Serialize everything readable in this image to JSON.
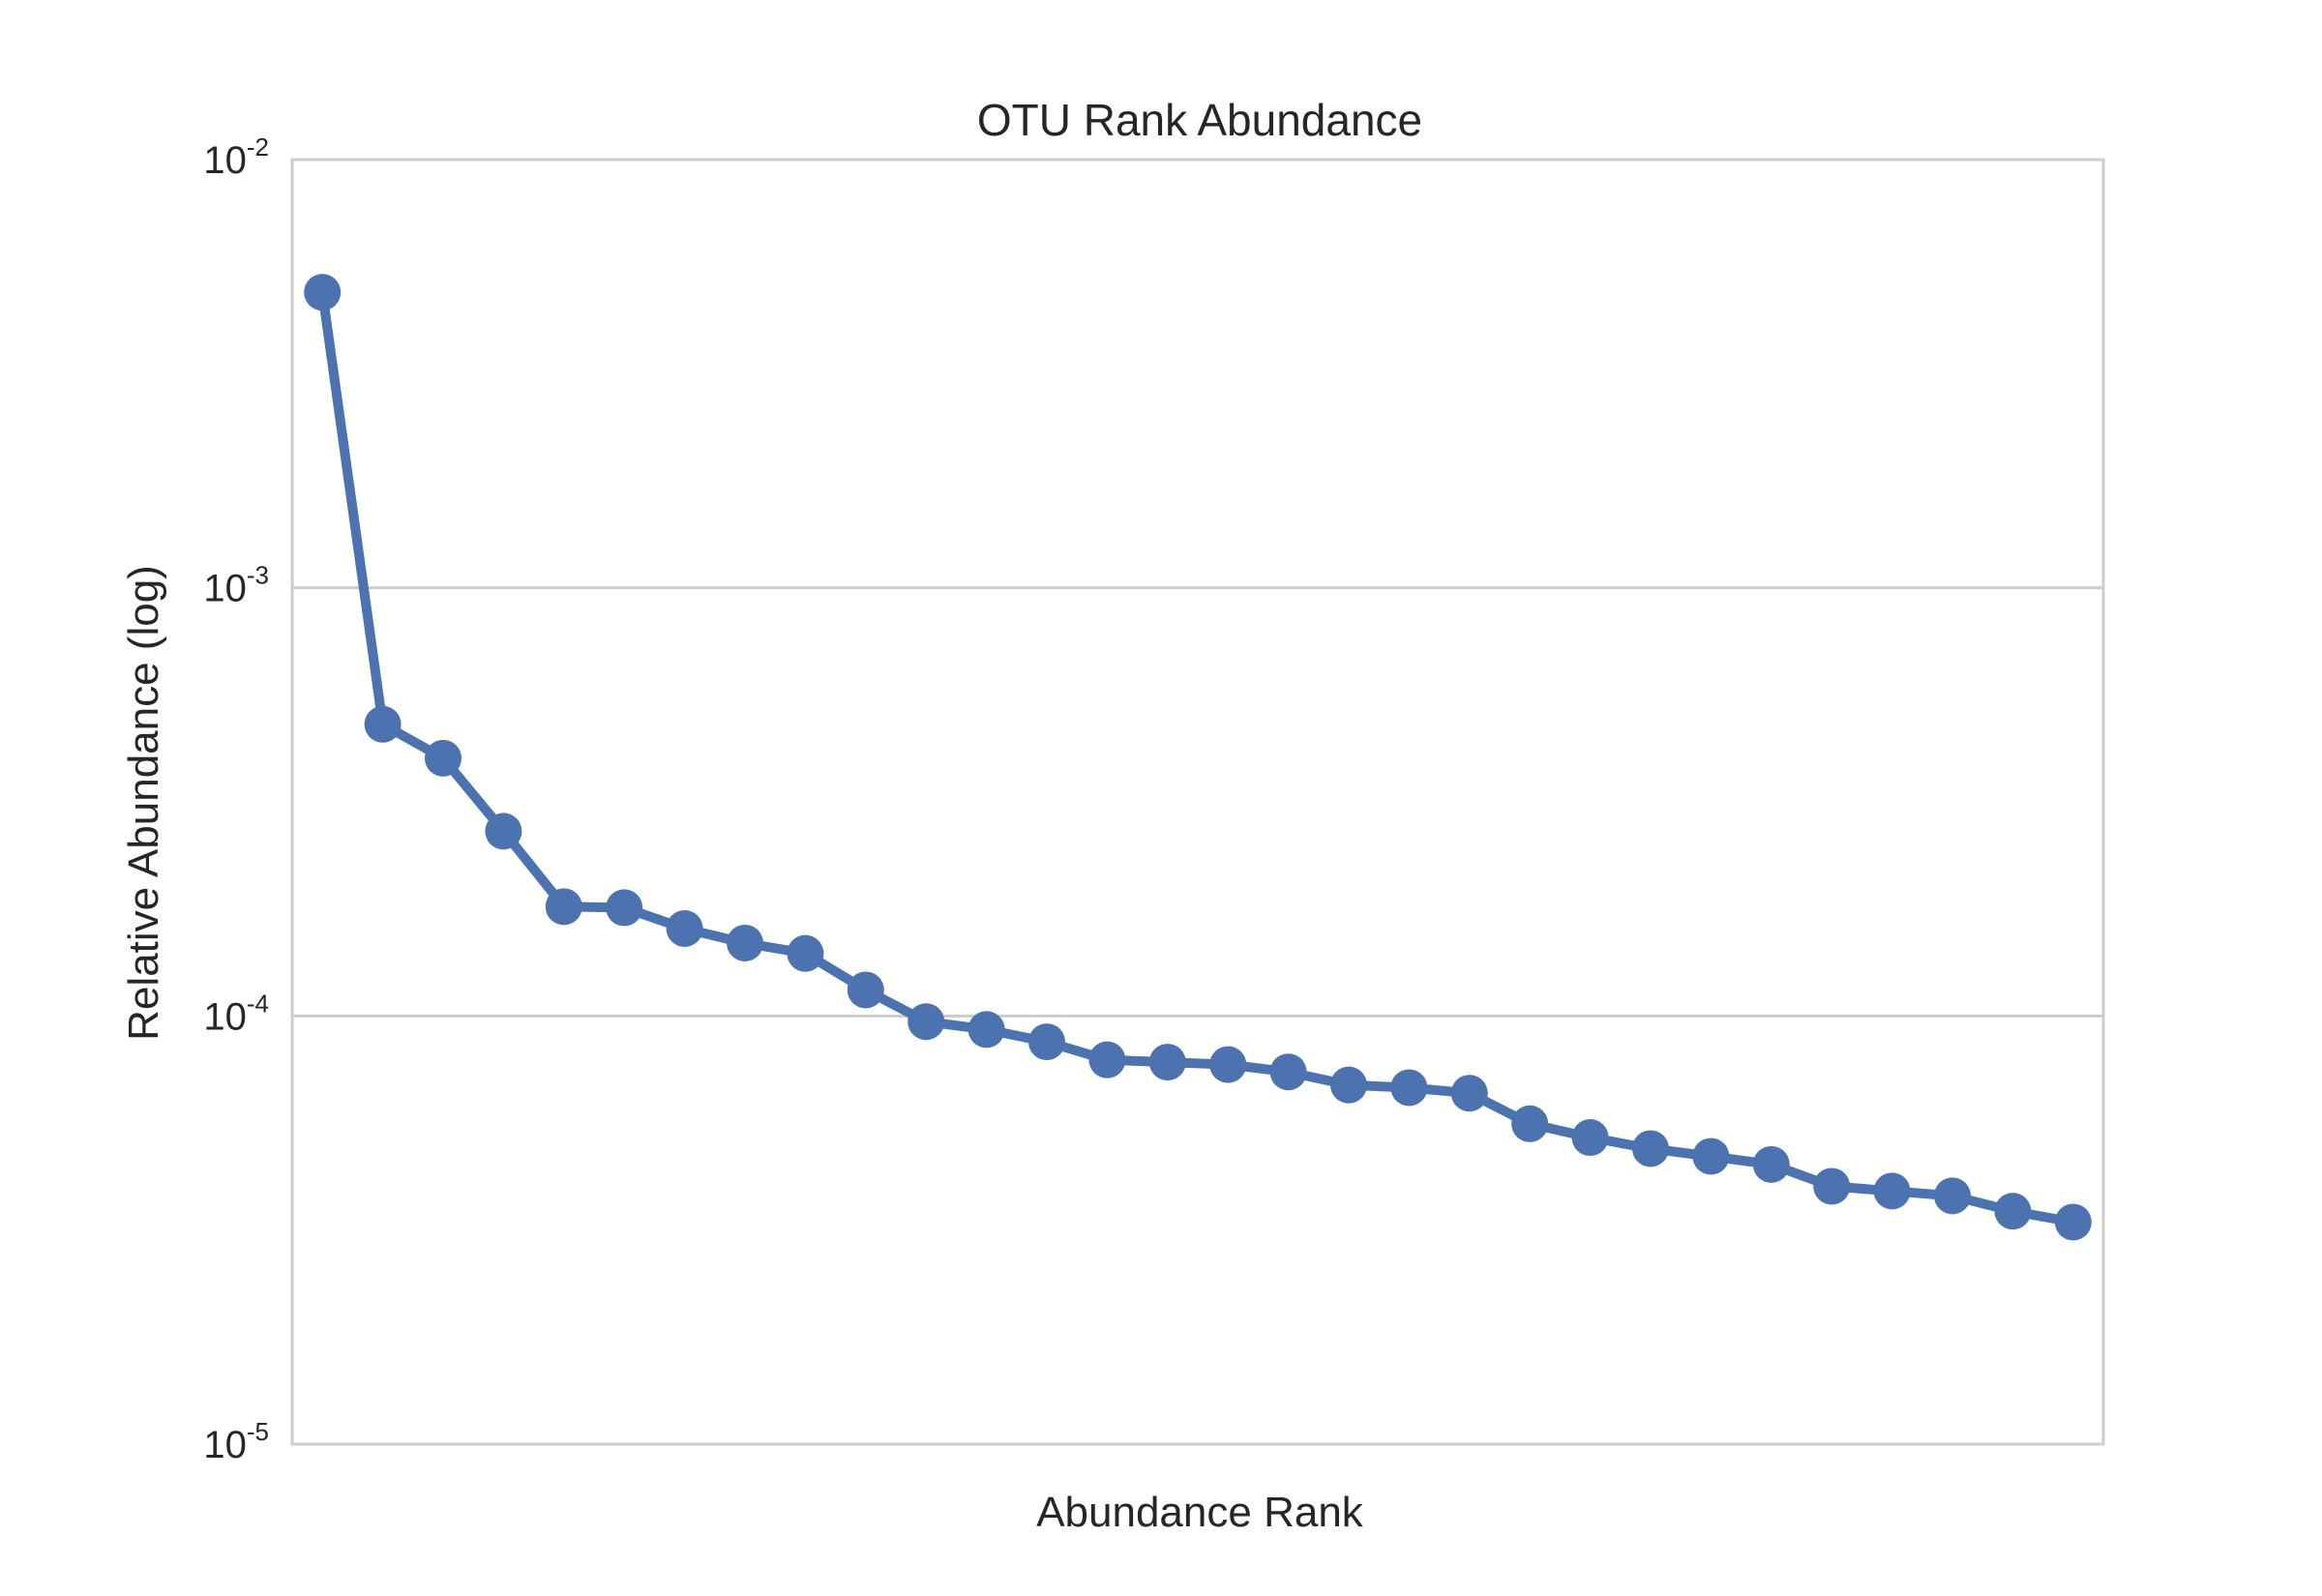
{
  "chart_data": {
    "type": "line",
    "title": "OTU Rank Abundance",
    "xlabel": "Abundance Rank",
    "ylabel": "Relative Abundance (log)",
    "y_scale": "log",
    "ylim": [
      1e-05,
      0.01
    ],
    "y_ticks": [
      {
        "value": 0.01,
        "base": "10",
        "exp": "-2"
      },
      {
        "value": 0.001,
        "base": "10",
        "exp": "-3"
      },
      {
        "value": 0.0001,
        "base": "10",
        "exp": "-4"
      },
      {
        "value": 1e-05,
        "base": "10",
        "exp": "-5"
      }
    ],
    "x_ticks_shown": false,
    "grid": "horizontal",
    "legend": "none",
    "marker": "circle",
    "color": "#4c72b0",
    "x": [
      1,
      2,
      3,
      4,
      5,
      6,
      7,
      8,
      9,
      10,
      11,
      12,
      13,
      14,
      15,
      16,
      17,
      18,
      19,
      20,
      21,
      22,
      23,
      24,
      25,
      26,
      27,
      28,
      29,
      30
    ],
    "values": [
      0.0049,
      0.00048,
      0.0004,
      0.00027,
      0.00018,
      0.000179,
      0.00016,
      0.000148,
      0.00014,
      0.000115,
      9.7e-05,
      9.3e-05,
      8.7e-05,
      7.9e-05,
      7.8e-05,
      7.7e-05,
      7.4e-05,
      6.9e-05,
      6.8e-05,
      6.6e-05,
      5.6e-05,
      5.2e-05,
      4.9e-05,
      4.7e-05,
      4.5e-05,
      4e-05,
      3.9e-05,
      3.8e-05,
      3.5e-05,
      3.3e-05
    ]
  }
}
